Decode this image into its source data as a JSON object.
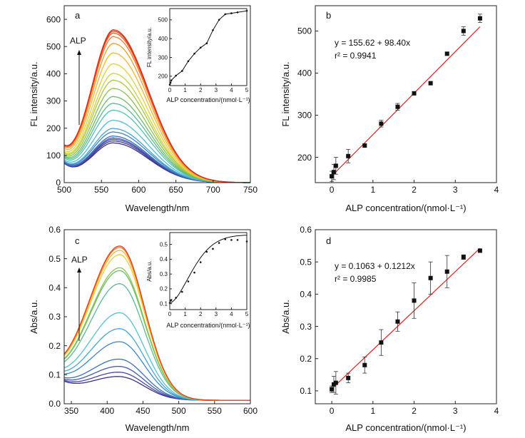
{
  "figure": {
    "panels": [
      {
        "id": "a",
        "letter": "a",
        "annotation": "ALP",
        "xlabel": "Wavelength/nm",
        "ylabel": "FL intensity/a.u.",
        "inset": {
          "xlabel": "ALP concentration/(nmol·L⁻¹)",
          "ylabel": "FL intensity/a.u."
        }
      },
      {
        "id": "b",
        "letter": "b",
        "xlabel": "ALP concentration/(nmol·L⁻¹)",
        "ylabel": "FL intensity/a.u.",
        "equation": "y = 155.62 + 98.40x",
        "r2": "r² = 0.9941"
      },
      {
        "id": "c",
        "letter": "c",
        "annotation": "ALP",
        "xlabel": "Wavelength/nm",
        "ylabel": "Abs/a.u.",
        "inset": {
          "xlabel": "ALP concentration/(nmol·L⁻¹)",
          "ylabel": "Abs/a.u."
        }
      },
      {
        "id": "d",
        "letter": "d",
        "xlabel": "ALP concentration/(nmol·L⁻¹)",
        "ylabel": "Abs/a.u.",
        "equation": "y = 0.1063 + 0.1212x",
        "r2": "r² = 0.9985"
      }
    ]
  },
  "chart_data": [
    {
      "panel": "a",
      "type": "line",
      "xlabel": "Wavelength/nm",
      "ylabel": "FL intensity/a.u.",
      "xlim": [
        500,
        750
      ],
      "ylim": [
        0,
        650
      ],
      "xticks": [
        500,
        550,
        600,
        650,
        700,
        750
      ],
      "yticks": [
        0,
        100,
        200,
        300,
        400,
        500,
        600
      ],
      "curve_shape": {
        "peak_wavelength": 567,
        "left_width": 30,
        "right_width": 46
      },
      "peak_intensities": [
        145,
        152,
        158,
        163,
        170,
        185,
        198,
        228,
        265,
        290,
        315,
        345,
        375,
        400,
        435,
        475,
        510,
        535,
        548,
        555,
        560
      ],
      "series_colors": [
        "#3b2f8f",
        "#43398f",
        "#4a4aa5",
        "#3f5cb0",
        "#3a6fc0",
        "#3d86c8",
        "#44a5d8",
        "#4fbcd8",
        "#56c0b2",
        "#5cba8e",
        "#6bbd6a",
        "#8cc24e",
        "#a9c93c",
        "#cdd33a",
        "#e6cf35",
        "#f2b62f",
        "#f39a2c",
        "#f07c26",
        "#ea5a22",
        "#e33f1f",
        "#dc2a1a"
      ],
      "inset": {
        "type": "line",
        "xlabel": "ALP concentration/(nmol·L⁻¹)",
        "ylabel": "FL intensity/a.u.",
        "xlim": [
          0,
          5
        ],
        "ylim": [
          150,
          560
        ],
        "xticks": [
          0,
          1,
          2,
          3,
          4,
          5
        ],
        "yticks": [
          200,
          300,
          400,
          500
        ],
        "x": [
          0,
          0.05,
          0.1,
          0.4,
          0.8,
          1.2,
          1.6,
          2.0,
          2.4,
          2.8,
          3.2,
          3.6,
          4.0,
          4.4,
          5.0
        ],
        "y": [
          155,
          165,
          178,
          203,
          228,
          280,
          320,
          352,
          375,
          445,
          500,
          530,
          535,
          540,
          548
        ]
      }
    },
    {
      "panel": "b",
      "type": "scatter",
      "xlabel": "ALP concentration/(nmol·L⁻¹)",
      "ylabel": "FL intensity/a.u.",
      "xlim": [
        -0.4,
        4
      ],
      "ylim": [
        140,
        560
      ],
      "xticks": [
        0,
        1,
        2,
        3,
        4
      ],
      "yticks": [
        200,
        300,
        400,
        500
      ],
      "x": [
        0,
        0.05,
        0.1,
        0.4,
        0.8,
        1.2,
        1.6,
        2.0,
        2.4,
        2.8,
        3.2,
        3.6
      ],
      "y": [
        155,
        165,
        180,
        203,
        228,
        280,
        320,
        352,
        376,
        446,
        500,
        530
      ],
      "err": [
        12,
        18,
        20,
        16,
        4,
        8,
        8,
        4,
        4,
        4,
        10,
        10
      ],
      "fit": {
        "intercept": 155.62,
        "slope": 98.4,
        "x_range": [
          0,
          3.6
        ]
      },
      "equation": "y = 155.62 + 98.40x",
      "r2_text": "r² = 0.9941"
    },
    {
      "panel": "c",
      "type": "line",
      "xlabel": "Wavelength/nm",
      "ylabel": "Abs/a.u.",
      "xlim": [
        340,
        600
      ],
      "ylim": [
        0,
        0.6
      ],
      "xticks": [
        350,
        400,
        450,
        500,
        550,
        600
      ],
      "yticks": [
        0.0,
        0.1,
        0.2,
        0.3,
        0.4,
        0.5,
        0.6
      ],
      "curve_shape": {
        "peak_wavelength": 418,
        "left_width": 44,
        "right_width": 34,
        "baseline": 0.012
      },
      "peak_absorbances": [
        0.09,
        0.105,
        0.125,
        0.15,
        0.21,
        0.255,
        0.31,
        0.41,
        0.455,
        0.465,
        0.51,
        0.525,
        0.535,
        0.54
      ],
      "series_colors": [
        "#3b2f8f",
        "#4a4aa5",
        "#3f5cb0",
        "#3a6fc0",
        "#3d86c8",
        "#44a5d8",
        "#56c0d6",
        "#5cba8e",
        "#6bbd6a",
        "#8cc24e",
        "#e6cf35",
        "#f2b62f",
        "#f07c26",
        "#e33f1f"
      ],
      "inset": {
        "type": "line",
        "xlabel": "ALP concentration/(nmol·L⁻¹)",
        "ylabel": "Abs/a.u.",
        "xlim": [
          0,
          5
        ],
        "ylim": [
          0.06,
          0.58
        ],
        "xticks": [
          0,
          1,
          2,
          3,
          4,
          5
        ],
        "yticks": [
          0.1,
          0.2,
          0.3,
          0.4,
          0.5
        ],
        "x": [
          0,
          0.05,
          0.1,
          0.4,
          0.8,
          1.2,
          1.6,
          2.0,
          2.4,
          2.8,
          3.2,
          3.6,
          4.0,
          4.4,
          5.0
        ],
        "y": [
          0.105,
          0.12,
          0.125,
          0.14,
          0.18,
          0.25,
          0.31,
          0.38,
          0.45,
          0.47,
          0.51,
          0.535,
          0.53,
          0.53,
          0.52
        ]
      }
    },
    {
      "panel": "d",
      "type": "scatter",
      "xlabel": "ALP concentration/(nmol·L⁻¹)",
      "ylabel": "Abs/a.u.",
      "xlim": [
        -0.4,
        4
      ],
      "ylim": [
        0.06,
        0.6
      ],
      "xticks": [
        0,
        1,
        2,
        3,
        4
      ],
      "yticks": [
        0.1,
        0.2,
        0.3,
        0.4,
        0.5,
        0.6
      ],
      "x": [
        0,
        0.05,
        0.1,
        0.4,
        0.8,
        1.2,
        1.6,
        2.0,
        2.4,
        2.8,
        3.2,
        3.6
      ],
      "y": [
        0.105,
        0.12,
        0.125,
        0.14,
        0.18,
        0.25,
        0.315,
        0.38,
        0.45,
        0.47,
        0.515,
        0.535
      ],
      "err": [
        0.01,
        0.025,
        0.035,
        0.015,
        0.025,
        0.04,
        0.03,
        0.055,
        0.05,
        0.05,
        0.007,
        0.005
      ],
      "fit": {
        "intercept": 0.1063,
        "slope": 0.1212,
        "x_range": [
          0,
          3.6
        ]
      },
      "equation": "y = 0.1063 + 0.1212x",
      "r2_text": "r² = 0.9985"
    }
  ]
}
